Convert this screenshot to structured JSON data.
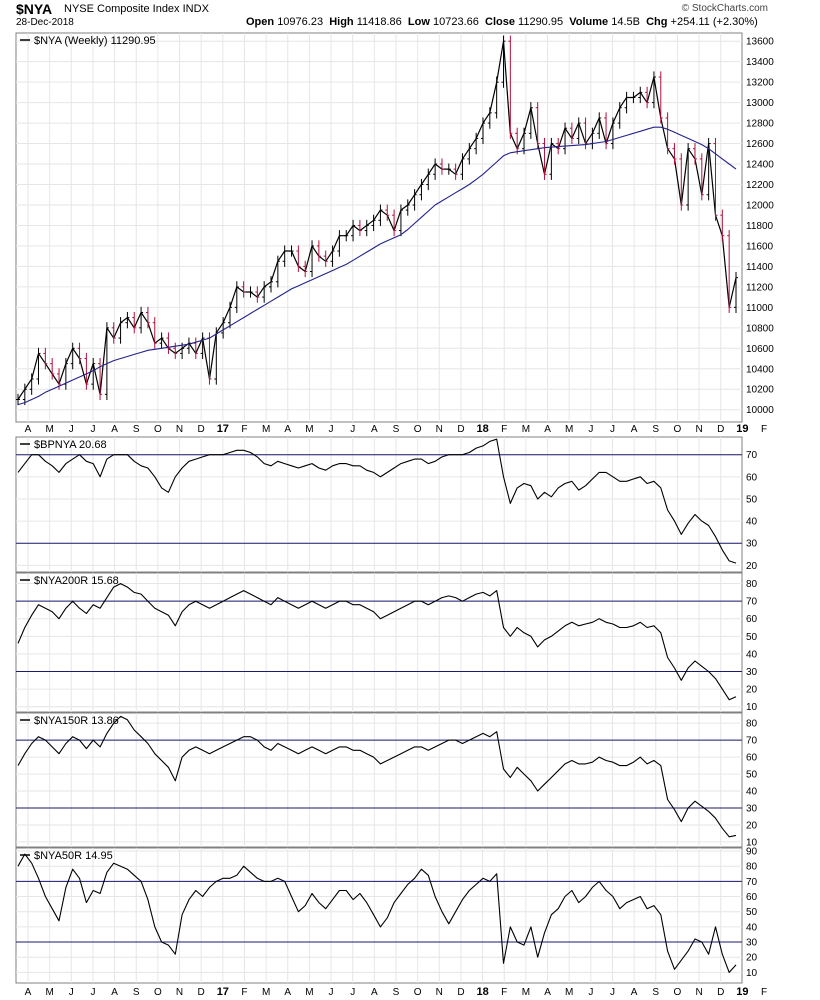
{
  "header": {
    "symbol": "$NYA",
    "name": "NYSE Composite Index",
    "exchange": "INDX",
    "date": "28-Dec-2018",
    "open_label": "Open",
    "open": "10976.23",
    "high_label": "High",
    "high": "11418.86",
    "low_label": "Low",
    "low": "10723.66",
    "close_label": "Close",
    "close": "11290.95",
    "volume_label": "Volume",
    "volume": "14.5B",
    "chg_label": "Chg",
    "chg": "+254.11 (+2.30%)",
    "copyright": "© StockCharts.com"
  },
  "x_axis_labels": [
    "A",
    "M",
    "J",
    "J",
    "A",
    "S",
    "O",
    "N",
    "D",
    "17",
    "F",
    "M",
    "A",
    "M",
    "J",
    "J",
    "A",
    "S",
    "O",
    "N",
    "D",
    "18",
    "F",
    "M",
    "A",
    "M",
    "J",
    "J",
    "A",
    "S",
    "O",
    "N",
    "D",
    "19",
    "F"
  ],
  "chart_data": [
    {
      "type": "line",
      "legend": "$NYA (Weekly) 11290.95",
      "ylim": [
        9880,
        13680
      ],
      "yticks": [
        10000,
        10200,
        10400,
        10600,
        10800,
        11000,
        11200,
        11400,
        11600,
        11800,
        12000,
        12200,
        12400,
        12600,
        12800,
        13000,
        13200,
        13400,
        13600
      ],
      "series": [
        {
          "name": "$NYA",
          "values": [
            10100,
            10200,
            10300,
            10550,
            10450,
            10350,
            10250,
            10450,
            10600,
            10500,
            10250,
            10450,
            10150,
            10800,
            10700,
            10850,
            10900,
            10800,
            10950,
            10850,
            10650,
            10700,
            10600,
            10550,
            10600,
            10650,
            10550,
            10700,
            10300,
            10750,
            10850,
            11000,
            11200,
            11150,
            11150,
            11100,
            11200,
            11250,
            11450,
            11550,
            11550,
            11400,
            11350,
            11600,
            11500,
            11450,
            11550,
            11700,
            11700,
            11800,
            11750,
            11800,
            11850,
            11950,
            11900,
            11750,
            11950,
            12000,
            12100,
            12200,
            12300,
            12400,
            12350,
            12350,
            12300,
            12450,
            12550,
            12650,
            12800,
            12900,
            13200,
            13600,
            12700,
            12550,
            12700,
            12950,
            12600,
            12300,
            12600,
            12550,
            12750,
            12650,
            12800,
            12600,
            12700,
            12850,
            12600,
            12800,
            12950,
            13050,
            13050,
            13100,
            13000,
            13250,
            12850,
            12550,
            12450,
            12000,
            12550,
            12450,
            12100,
            12600,
            11900,
            11700,
            11000,
            11290
          ]
        },
        {
          "name": "MA",
          "values": [
            10050,
            10070,
            10100,
            10130,
            10170,
            10200,
            10230,
            10260,
            10290,
            10320,
            10350,
            10380,
            10420,
            10450,
            10480,
            10500,
            10520,
            10540,
            10560,
            10580,
            10590,
            10600,
            10610,
            10620,
            10630,
            10640,
            10660,
            10680,
            10700,
            10740,
            10780,
            10820,
            10860,
            10900,
            10940,
            10980,
            11020,
            11060,
            11100,
            11140,
            11180,
            11210,
            11240,
            11270,
            11300,
            11330,
            11360,
            11390,
            11420,
            11460,
            11500,
            11540,
            11580,
            11620,
            11650,
            11680,
            11710,
            11760,
            11820,
            11880,
            11940,
            12000,
            12040,
            12080,
            12120,
            12160,
            12200,
            12250,
            12300,
            12360,
            12420,
            12480,
            12510,
            12520,
            12530,
            12540,
            12550,
            12560,
            12565,
            12570,
            12575,
            12580,
            12585,
            12590,
            12600,
            12610,
            12620,
            12640,
            12660,
            12680,
            12700,
            12720,
            12740,
            12760,
            12760,
            12740,
            12710,
            12680,
            12650,
            12620,
            12590,
            12550,
            12500,
            12450,
            12400,
            12350
          ]
        }
      ]
    },
    {
      "type": "line",
      "legend": "$BPNYA 20.68",
      "ylim": [
        17,
        78
      ],
      "yticks": [
        20,
        30,
        40,
        50,
        60,
        70
      ],
      "hlines": [
        70,
        30
      ],
      "series": [
        {
          "name": "$BPNYA",
          "values": [
            62,
            66,
            70,
            70,
            67,
            65,
            62,
            66,
            68,
            70,
            67,
            66,
            60,
            68,
            70,
            70,
            70,
            67,
            65,
            64,
            60,
            55,
            53,
            60,
            64,
            67,
            68,
            69,
            70,
            70,
            70,
            71,
            72,
            72,
            71,
            69,
            66,
            65,
            67,
            66,
            65,
            64,
            65,
            66,
            64,
            63,
            65,
            66,
            66,
            65,
            65,
            63,
            62,
            60,
            62,
            64,
            66,
            67,
            68,
            68,
            66,
            67,
            69,
            70,
            70,
            70,
            71,
            73,
            74,
            76,
            77,
            60,
            48,
            55,
            57,
            56,
            50,
            53,
            51,
            55,
            57,
            58,
            54,
            56,
            59,
            62,
            62,
            60,
            58,
            58,
            59,
            60,
            57,
            58,
            55,
            45,
            40,
            34,
            39,
            43,
            40,
            38,
            33,
            27,
            22,
            21
          ]
        }
      ]
    },
    {
      "type": "line",
      "legend": "$NYA200R 15.68",
      "ylim": [
        7,
        86
      ],
      "yticks": [
        10,
        20,
        30,
        40,
        50,
        60,
        70,
        80
      ],
      "hlines": [
        70,
        30
      ],
      "series": [
        {
          "name": "$NYA200R",
          "values": [
            46,
            55,
            62,
            68,
            66,
            64,
            60,
            66,
            70,
            66,
            63,
            68,
            66,
            72,
            78,
            80,
            78,
            75,
            74,
            70,
            66,
            64,
            62,
            56,
            64,
            68,
            70,
            68,
            66,
            68,
            70,
            72,
            74,
            76,
            74,
            72,
            70,
            68,
            72,
            70,
            68,
            66,
            68,
            70,
            68,
            66,
            68,
            70,
            70,
            68,
            68,
            66,
            64,
            60,
            62,
            64,
            66,
            68,
            70,
            70,
            68,
            70,
            72,
            73,
            72,
            70,
            72,
            74,
            75,
            73,
            76,
            55,
            50,
            55,
            52,
            50,
            44,
            48,
            50,
            53,
            56,
            58,
            56,
            57,
            58,
            60,
            58,
            57,
            55,
            55,
            56,
            58,
            55,
            56,
            52,
            38,
            32,
            25,
            32,
            36,
            33,
            30,
            26,
            20,
            14,
            15.68
          ]
        }
      ]
    },
    {
      "type": "line",
      "legend": "$NYA150R 13.86",
      "ylim": [
        7,
        86
      ],
      "yticks": [
        10,
        20,
        30,
        40,
        50,
        60,
        70,
        80
      ],
      "hlines": [
        70,
        30
      ],
      "series": [
        {
          "name": "$NYA150R",
          "values": [
            55,
            62,
            68,
            72,
            70,
            66,
            62,
            68,
            72,
            70,
            65,
            70,
            66,
            74,
            80,
            84,
            82,
            76,
            72,
            68,
            62,
            58,
            54,
            46,
            60,
            64,
            66,
            64,
            62,
            64,
            66,
            68,
            70,
            72,
            72,
            70,
            66,
            64,
            68,
            66,
            64,
            62,
            64,
            66,
            64,
            62,
            64,
            66,
            66,
            64,
            64,
            62,
            60,
            56,
            58,
            60,
            62,
            64,
            66,
            66,
            64,
            66,
            68,
            70,
            70,
            68,
            70,
            72,
            74,
            72,
            75,
            53,
            48,
            54,
            50,
            46,
            40,
            44,
            48,
            52,
            56,
            58,
            56,
            56,
            57,
            60,
            58,
            57,
            55,
            55,
            57,
            60,
            56,
            58,
            55,
            35,
            29,
            22,
            30,
            34,
            31,
            28,
            24,
            18,
            13,
            13.86
          ]
        }
      ]
    },
    {
      "type": "line",
      "legend": "$NYA50R 14.95",
      "ylim": [
        3,
        92
      ],
      "yticks": [
        10,
        20,
        30,
        40,
        50,
        60,
        70,
        80,
        90
      ],
      "hlines": [
        70,
        30
      ],
      "series": [
        {
          "name": "$NYA50R",
          "values": [
            80,
            88,
            82,
            72,
            60,
            52,
            44,
            66,
            78,
            72,
            56,
            64,
            62,
            76,
            82,
            80,
            78,
            74,
            70,
            58,
            40,
            30,
            28,
            22,
            48,
            58,
            64,
            60,
            66,
            70,
            72,
            72,
            74,
            80,
            76,
            72,
            70,
            70,
            72,
            70,
            60,
            50,
            54,
            62,
            56,
            52,
            58,
            64,
            64,
            58,
            62,
            56,
            48,
            40,
            46,
            56,
            62,
            68,
            72,
            78,
            74,
            60,
            50,
            42,
            50,
            58,
            64,
            68,
            72,
            70,
            75,
            16,
            40,
            30,
            28,
            40,
            20,
            36,
            48,
            52,
            60,
            64,
            56,
            60,
            66,
            70,
            64,
            60,
            52,
            56,
            58,
            60,
            52,
            54,
            48,
            24,
            12,
            18,
            24,
            32,
            30,
            22,
            40,
            22,
            10,
            14.95
          ]
        }
      ]
    }
  ]
}
